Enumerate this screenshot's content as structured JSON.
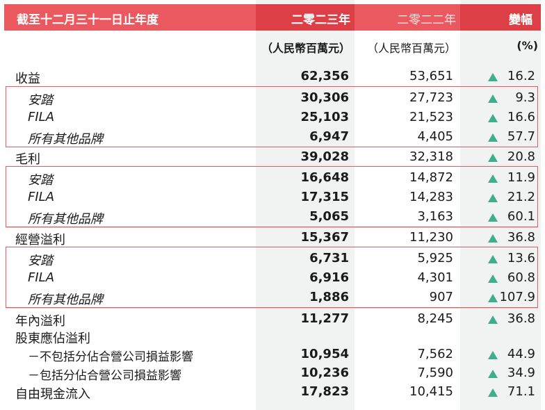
{
  "header": {
    "label": "截至十二月三十一日止年度",
    "current_year": "二零二三年",
    "prior_year": "二零二二年",
    "change": "變幅"
  },
  "units": {
    "current": "（人民幣百萬元）",
    "prior": "（人民幣百萬元）",
    "change": "(%)"
  },
  "colors": {
    "header": "#e9595f",
    "header_highlight": "#dc3f45",
    "up_arrow": "#3fae8c"
  },
  "rows": [
    {
      "label": "收益",
      "current": "62,356",
      "prior": "53,651",
      "change": "16.2"
    },
    {
      "label": "安踏",
      "current": "30,306",
      "prior": "27,723",
      "change": "9.3"
    },
    {
      "label": "FILA",
      "current": "25,103",
      "prior": "21,523",
      "change": "16.6"
    },
    {
      "label": "所有其他品牌",
      "current": "6,947",
      "prior": "4,405",
      "change": "57.7"
    },
    {
      "label": "毛利",
      "current": "39,028",
      "prior": "32,318",
      "change": "20.8"
    },
    {
      "label": "安踏",
      "current": "16,648",
      "prior": "14,872",
      "change": "11.9"
    },
    {
      "label": "FILA",
      "current": "17,315",
      "prior": "14,283",
      "change": "21.2"
    },
    {
      "label": "所有其他品牌",
      "current": "5,065",
      "prior": "3,163",
      "change": "60.1"
    },
    {
      "label": "經營溢利",
      "current": "15,367",
      "prior": "11,230",
      "change": "36.8"
    },
    {
      "label": "安踏",
      "current": "6,731",
      "prior": "5,925",
      "change": "13.6"
    },
    {
      "label": "FILA",
      "current": "6,916",
      "prior": "4,301",
      "change": "60.8"
    },
    {
      "label": "所有其他品牌",
      "current": "1,886",
      "prior": "907",
      "change": "107.9"
    },
    {
      "label": "年內溢利",
      "current": "11,277",
      "prior": "8,245",
      "change": "36.8"
    },
    {
      "label": "股東應佔溢利",
      "current": "",
      "prior": "",
      "change": ""
    },
    {
      "label": "－不包括分佔合營公司損益影響",
      "current": "10,954",
      "prior": "7,562",
      "change": "44.9"
    },
    {
      "label": "－包括分佔合營公司損益影響",
      "current": "10,236",
      "prior": "7,590",
      "change": "34.9"
    },
    {
      "label": "自由現金流入",
      "current": "17,823",
      "prior": "10,415",
      "change": "71.1"
    }
  ]
}
